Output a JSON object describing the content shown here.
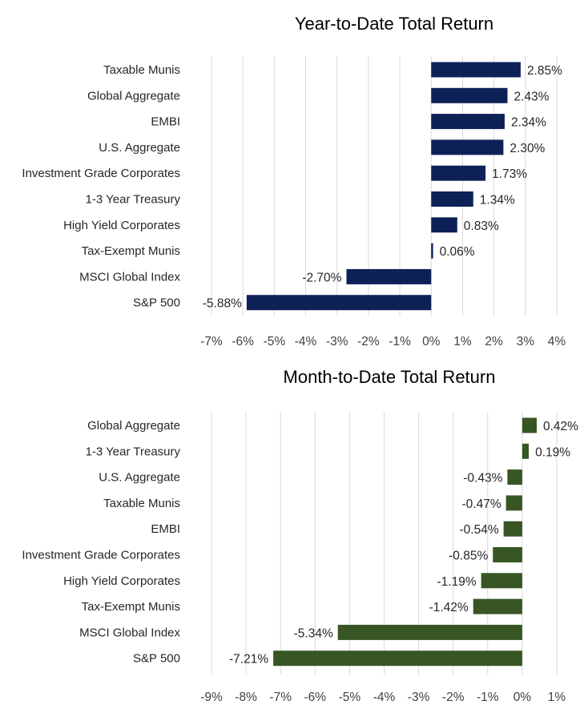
{
  "chart_data": [
    {
      "type": "bar",
      "orientation": "horizontal",
      "title": "Year-to-Date Total Return",
      "categories": [
        "Taxable Munis",
        "Global Aggregate",
        "EMBI",
        "U.S. Aggregate",
        "Investment Grade Corporates",
        "1-3 Year Treasury",
        "High Yield Corporates",
        "Tax-Exempt Munis",
        "MSCI Global Index",
        "S&P 500"
      ],
      "values": [
        2.85,
        2.43,
        2.34,
        2.3,
        1.73,
        1.34,
        0.83,
        0.06,
        -2.7,
        -5.88
      ],
      "data_labels": [
        "2.85%",
        "2.43%",
        "2.34%",
        "2.30%",
        "1.73%",
        "1.34%",
        "0.83%",
        "0.06%",
        "-2.70%",
        "-5.88%"
      ],
      "xlim": [
        -7,
        4
      ],
      "ticks": [
        -7,
        -6,
        -5,
        -4,
        -3,
        -2,
        -1,
        0,
        1,
        2,
        3,
        4
      ],
      "tick_labels": [
        "-7%",
        "-6%",
        "-5%",
        "-4%",
        "-3%",
        "-2%",
        "-1%",
        "0%",
        "1%",
        "2%",
        "3%",
        "4%"
      ],
      "grid": true,
      "legend": "none",
      "color": "#0e2157"
    },
    {
      "type": "bar",
      "orientation": "horizontal",
      "title": "Month-to-Date Total Return",
      "categories": [
        "Global Aggregate",
        "1-3 Year Treasury",
        "U.S. Aggregate",
        "Taxable Munis",
        "EMBI",
        "Investment Grade Corporates",
        "High Yield Corporates",
        "Tax-Exempt Munis",
        "MSCI Global Index",
        "S&P 500"
      ],
      "values": [
        0.42,
        0.19,
        -0.43,
        -0.47,
        -0.54,
        -0.85,
        -1.19,
        -1.42,
        -5.34,
        -7.21
      ],
      "data_labels": [
        "0.42%",
        "0.19%",
        "-0.43%",
        "-0.47%",
        "-0.54%",
        "-0.85%",
        "-1.19%",
        "-1.42%",
        "-5.34%",
        "-7.21%"
      ],
      "xlim": [
        -9,
        1
      ],
      "ticks": [
        -9,
        -8,
        -7,
        -6,
        -5,
        -4,
        -3,
        -2,
        -1,
        0,
        1
      ],
      "tick_labels": [
        "-9%",
        "-8%",
        "-7%",
        "-6%",
        "-5%",
        "-4%",
        "-3%",
        "-2%",
        "-1%",
        "0%",
        "1%"
      ],
      "grid": true,
      "legend": "none",
      "color": "#375623"
    }
  ]
}
